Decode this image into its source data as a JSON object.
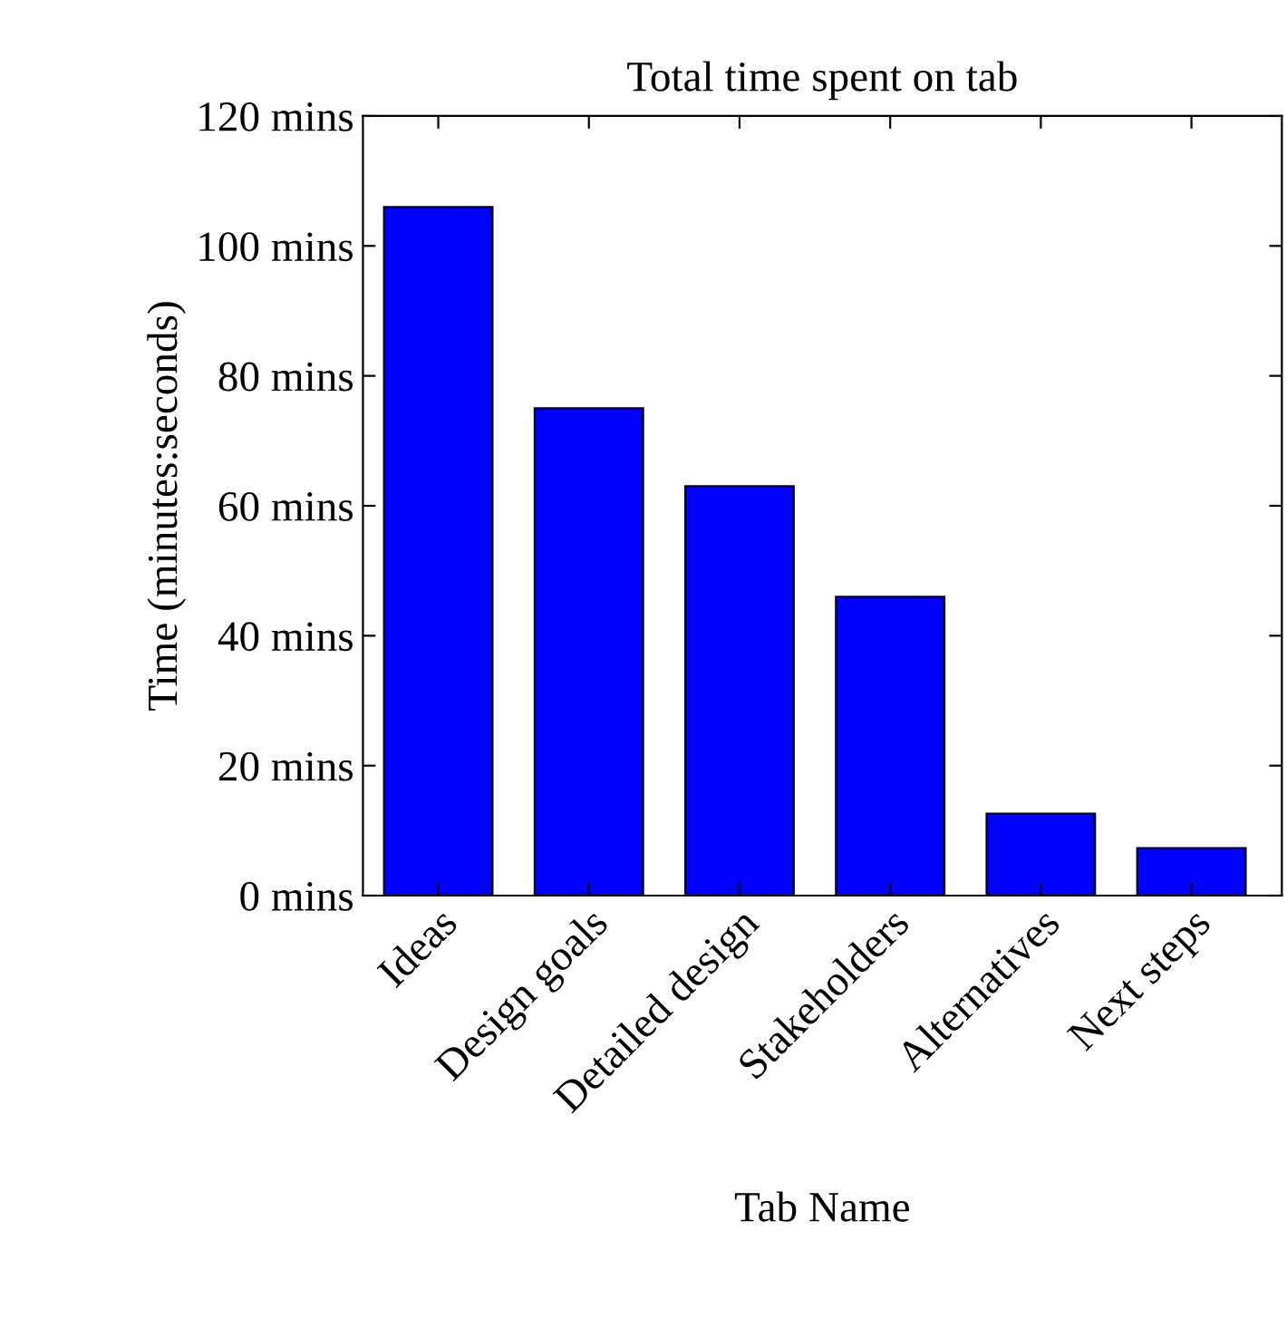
{
  "chart_data": {
    "type": "bar",
    "title": "Total time spent on tab",
    "xlabel": "Tab Name",
    "ylabel": "Time (minutes:seconds)",
    "categories": [
      "Ideas",
      "Design goals",
      "Detailed design",
      "Stakeholders",
      "Alternatives",
      "Next steps"
    ],
    "values": [
      106,
      75,
      63,
      46,
      12.6,
      7.3
    ],
    "color": "#0000ff",
    "ylim": [
      0,
      120
    ],
    "yticks": [
      {
        "value": 0,
        "label": "0 mins"
      },
      {
        "value": 20,
        "label": "20 mins"
      },
      {
        "value": 40,
        "label": "40 mins"
      },
      {
        "value": 60,
        "label": "60 mins"
      },
      {
        "value": 80,
        "label": "80 mins"
      },
      {
        "value": 100,
        "label": "100 mins"
      },
      {
        "value": 120,
        "label": "120 mins"
      }
    ],
    "grid": false,
    "legend": false
  }
}
